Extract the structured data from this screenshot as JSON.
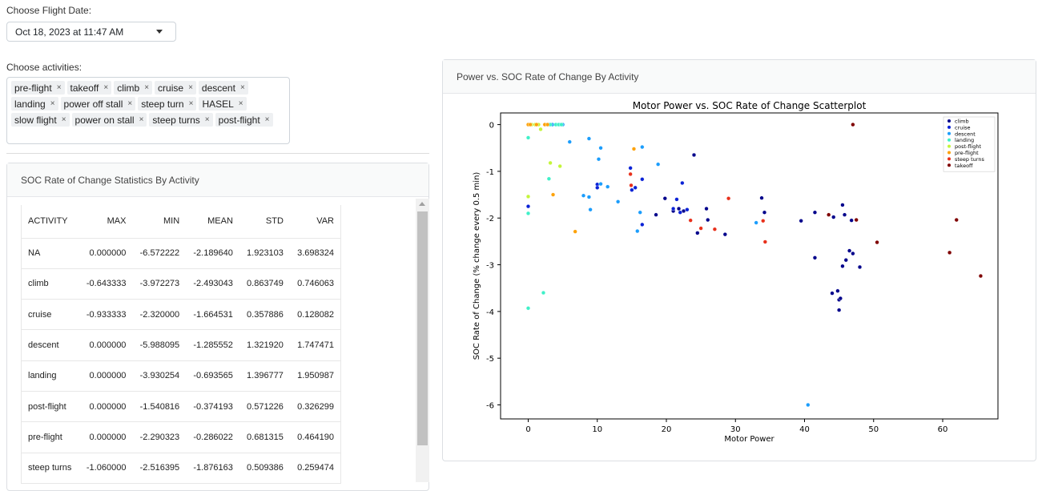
{
  "flight_date": {
    "label": "Choose Flight Date:",
    "value": "Oct 18, 2023 at 11:47 AM"
  },
  "activities": {
    "label": "Choose activities:",
    "selected": [
      "pre-flight",
      "takeoff",
      "climb",
      "cruise",
      "descent",
      "landing",
      "power off stall",
      "steep turn",
      "HASEL",
      "slow flight",
      "power on stall",
      "steep turns",
      "post-flight"
    ],
    "remove_glyph": "×"
  },
  "stats_card": {
    "title": "SOC Rate of Change Statistics By Activity",
    "columns": [
      "ACTIVITY",
      "MAX",
      "MIN",
      "MEAN",
      "STD",
      "VAR"
    ],
    "rows": [
      [
        "NA",
        "0.000000",
        "-6.572222",
        "-2.189640",
        "1.923103",
        "3.698324"
      ],
      [
        "climb",
        "-0.643333",
        "-3.972273",
        "-2.493043",
        "0.863749",
        "0.746063"
      ],
      [
        "cruise",
        "-0.933333",
        "-2.320000",
        "-1.664531",
        "0.357886",
        "0.128082"
      ],
      [
        "descent",
        "0.000000",
        "-5.988095",
        "-1.285552",
        "1.321920",
        "1.747471"
      ],
      [
        "landing",
        "0.000000",
        "-3.930254",
        "-0.693565",
        "1.396777",
        "1.950987"
      ],
      [
        "post-flight",
        "0.000000",
        "-1.540816",
        "-0.374193",
        "0.571226",
        "0.326299"
      ],
      [
        "pre-flight",
        "0.000000",
        "-2.290323",
        "-0.286022",
        "0.681315",
        "0.464190"
      ],
      [
        "steep turns",
        "-1.060000",
        "-2.516395",
        "-1.876163",
        "0.509386",
        "0.259474"
      ]
    ]
  },
  "plot_card": {
    "title": "Power vs. SOC Rate of Change By Activity"
  },
  "chart_data": {
    "type": "scatter",
    "title": "Motor Power vs. SOC Rate of Change Scatterplot",
    "xlabel": "Motor Power",
    "ylabel": "SOC Rate of Change (% change every 0.5 min)",
    "xlim": [
      -4,
      68
    ],
    "ylim": [
      -6.3,
      0.25
    ],
    "xticks": [
      0,
      10,
      20,
      30,
      40,
      50,
      60
    ],
    "yticks": [
      0,
      -1,
      -2,
      -3,
      -4,
      -5,
      -6
    ],
    "grid": false,
    "legend_position": "top-right",
    "series": [
      {
        "name": "climb",
        "color": "#00008b",
        "points": [
          [
            19.8,
            -1.58
          ],
          [
            21.0,
            -1.85
          ],
          [
            21.8,
            -1.8
          ],
          [
            22.5,
            -1.85
          ],
          [
            23.0,
            -1.82
          ],
          [
            24.0,
            -0.65
          ],
          [
            25.8,
            -1.8
          ],
          [
            28.5,
            -2.35
          ],
          [
            33.8,
            -1.57
          ],
          [
            34.2,
            -1.88
          ],
          [
            39.5,
            -2.06
          ],
          [
            41.5,
            -1.88
          ],
          [
            41.5,
            -2.85
          ],
          [
            44.2,
            -1.98
          ],
          [
            44.0,
            -3.61
          ],
          [
            44.8,
            -3.56
          ],
          [
            45.0,
            -3.75
          ],
          [
            45.2,
            -3.72
          ],
          [
            45.0,
            -3.97
          ],
          [
            45.5,
            -1.72
          ],
          [
            45.8,
            -1.93
          ],
          [
            46.0,
            -2.9
          ],
          [
            45.5,
            -3.03
          ],
          [
            46.5,
            -2.7
          ],
          [
            47.0,
            -2.76
          ],
          [
            48.0,
            -3.05
          ],
          [
            46.8,
            -2.05
          ],
          [
            26.0,
            -2.04
          ],
          [
            24.5,
            -2.32
          ],
          [
            18.5,
            -1.93
          ]
        ]
      },
      {
        "name": "cruise",
        "color": "#0a22d6",
        "points": [
          [
            0.0,
            -1.75
          ],
          [
            10.0,
            -1.28
          ],
          [
            10.0,
            -1.35
          ],
          [
            14.8,
            -0.93
          ],
          [
            15.0,
            -1.4
          ],
          [
            15.5,
            -1.35
          ],
          [
            16.5,
            -1.17
          ],
          [
            16.5,
            -2.14
          ],
          [
            21.0,
            -1.8
          ],
          [
            21.5,
            -1.6
          ],
          [
            22.0,
            -1.88
          ],
          [
            22.3,
            -1.25
          ],
          [
            23.0,
            -1.82
          ]
        ]
      },
      {
        "name": "descent",
        "color": "#1b9dfc",
        "points": [
          [
            6.0,
            -0.37
          ],
          [
            8.8,
            -0.3
          ],
          [
            10.2,
            -0.74
          ],
          [
            10.5,
            -0.5
          ],
          [
            10.5,
            -1.27
          ],
          [
            8.0,
            -1.52
          ],
          [
            8.8,
            -1.55
          ],
          [
            9.0,
            -1.82
          ],
          [
            11.5,
            -1.33
          ],
          [
            13.0,
            -1.65
          ],
          [
            16.2,
            -1.88
          ],
          [
            15.8,
            -2.28
          ],
          [
            16.5,
            -0.48
          ],
          [
            18.8,
            -0.85
          ],
          [
            33.0,
            -2.1
          ],
          [
            40.5,
            -6.0
          ],
          [
            3.0,
            0.0
          ],
          [
            3.5,
            0.0
          ],
          [
            4.0,
            0.0
          ],
          [
            4.5,
            0.0
          ],
          [
            5.0,
            0.0
          ]
        ]
      },
      {
        "name": "landing",
        "color": "#3ff0c8",
        "points": [
          [
            0.0,
            -0.28
          ],
          [
            0.0,
            -1.9
          ],
          [
            0.0,
            -3.93
          ],
          [
            2.2,
            -3.6
          ],
          [
            3.0,
            -1.16
          ],
          [
            2.8,
            0.0
          ],
          [
            3.2,
            0.0
          ],
          [
            4.0,
            0.0
          ],
          [
            4.4,
            0.0
          ],
          [
            4.8,
            0.0
          ]
        ]
      },
      {
        "name": "post-flight",
        "color": "#c4f53a",
        "points": [
          [
            0.5,
            0.0
          ],
          [
            1.0,
            0.0
          ],
          [
            1.5,
            0.0
          ],
          [
            1.8,
            -0.1
          ],
          [
            0.0,
            -1.54
          ],
          [
            3.2,
            -0.82
          ],
          [
            4.6,
            -0.89
          ]
        ]
      },
      {
        "name": "pre-flight",
        "color": "#fda20a",
        "points": [
          [
            0.0,
            0.0
          ],
          [
            0.3,
            0.0
          ],
          [
            1.2,
            0.0
          ],
          [
            2.4,
            0.0
          ],
          [
            2.8,
            0.0
          ],
          [
            3.6,
            -1.5
          ],
          [
            6.8,
            -2.29
          ],
          [
            15.3,
            -0.52
          ]
        ]
      },
      {
        "name": "steep turns",
        "color": "#e8301b",
        "points": [
          [
            14.8,
            -1.06
          ],
          [
            14.9,
            -1.3
          ],
          [
            23.5,
            -2.05
          ],
          [
            25.0,
            -2.22
          ],
          [
            27.0,
            -2.24
          ],
          [
            29.0,
            -1.58
          ],
          [
            34.0,
            -2.06
          ],
          [
            34.3,
            -2.51
          ]
        ]
      },
      {
        "name": "takeoff",
        "color": "#7f0000",
        "points": [
          [
            47.0,
            0.0
          ],
          [
            43.5,
            -1.93
          ],
          [
            47.5,
            -2.04
          ],
          [
            50.5,
            -2.52
          ],
          [
            61.0,
            -2.74
          ],
          [
            62.0,
            -2.04
          ],
          [
            65.5,
            -3.24
          ]
        ]
      }
    ]
  }
}
